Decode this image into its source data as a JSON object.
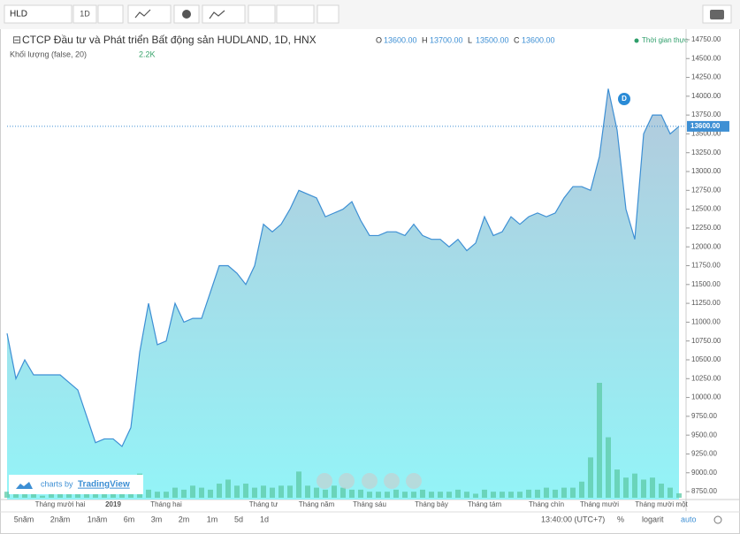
{
  "toolbar": {
    "symbol": "HLD",
    "interval": "1D"
  },
  "chart_data": {
    "type": "area",
    "title": "CTCP Đầu tư và Phát triển Bất động sản HUDLAND, 1D, HNX",
    "ohlc": [
      {
        "label": "O",
        "value": "13600.00"
      },
      {
        "label": "H",
        "value": "13700.00"
      },
      {
        "label": "L",
        "value": "13500.00"
      },
      {
        "label": "C",
        "value": "13600.00"
      }
    ],
    "realtime": "Thời gian thực",
    "volume_title": "Khối lượng (false, 20)",
    "volume_value": "2.2K",
    "marker": "D",
    "color": "#3d8fd4",
    "categories": [
      null,
      null,
      null,
      null,
      null,
      null,
      "Tháng mười hai",
      null,
      null,
      null,
      null,
      null,
      "2019",
      null,
      null,
      null,
      null,
      null,
      "Tháng hai",
      null,
      null,
      null,
      null,
      null,
      null,
      null,
      null,
      null,
      null,
      "Tháng tư",
      null,
      null,
      null,
      null,
      null,
      "Tháng năm",
      null,
      null,
      null,
      null,
      null,
      "Tháng sáu",
      null,
      null,
      null,
      null,
      null,
      null,
      "Tháng bảy",
      null,
      null,
      null,
      null,
      null,
      "Tháng tám",
      null,
      null,
      null,
      null,
      null,
      null,
      "Tháng chín",
      null,
      null,
      null,
      null,
      null,
      "Tháng mười",
      null,
      null,
      null,
      null,
      null,
      null,
      "Tháng mười một",
      null,
      null
    ],
    "values": [
      10850,
      10250,
      10500,
      10300,
      10300,
      10300,
      10300,
      10200,
      10100,
      9750,
      9400,
      9450,
      9450,
      9350,
      9600,
      10600,
      11250,
      10700,
      10750,
      11250,
      11000,
      11050,
      11050,
      11400,
      11750,
      11750,
      11650,
      11500,
      11750,
      12300,
      12200,
      12300,
      12500,
      12750,
      12700,
      12650,
      12400,
      12450,
      12500,
      12600,
      12350,
      12150,
      12150,
      12200,
      12200,
      12150,
      12300,
      12150,
      12100,
      12100,
      12000,
      12100,
      11950,
      12050,
      12400,
      12150,
      12200,
      12400,
      12300,
      12400,
      12450,
      12400,
      12450,
      12650,
      12800,
      12800,
      12750,
      13200,
      14100,
      13550,
      12500,
      12100,
      13500,
      13750,
      13750,
      13500,
      13600
    ],
    "volume": [
      3,
      2,
      2,
      2,
      1,
      2,
      2,
      2,
      3,
      2,
      4,
      5,
      3,
      3,
      5,
      12,
      4,
      3,
      3,
      5,
      4,
      6,
      5,
      4,
      7,
      9,
      6,
      7,
      5,
      6,
      5,
      6,
      6,
      13,
      6,
      5,
      4,
      6,
      5,
      4,
      4,
      3,
      3,
      3,
      4,
      3,
      3,
      4,
      3,
      3,
      3,
      4,
      3,
      2,
      4,
      3,
      3,
      3,
      3,
      4,
      4,
      5,
      4,
      5,
      5,
      8,
      20,
      57,
      30,
      14,
      10,
      12,
      9,
      10,
      7,
      5,
      2.2
    ],
    "ylim": [
      8645,
      14855
    ],
    "yticks": [
      {
        "value": 8750,
        "label": "8750.00"
      },
      {
        "value": 9000,
        "label": "9000.00"
      },
      {
        "value": 9250,
        "label": "9250.00"
      },
      {
        "value": 9500,
        "label": "9500.00"
      },
      {
        "value": 9750,
        "label": "9750.00"
      },
      {
        "value": 10000,
        "label": "10000.00"
      },
      {
        "value": 10250,
        "label": "10250.00"
      },
      {
        "value": 10500,
        "label": "10500.00"
      },
      {
        "value": 10750,
        "label": "10750.00"
      },
      {
        "value": 11000,
        "label": "11000.00"
      },
      {
        "value": 11250,
        "label": "11250.00"
      },
      {
        "value": 11500,
        "label": "11500.00"
      },
      {
        "value": 11750,
        "label": "11750.00"
      },
      {
        "value": 12000,
        "label": "12000.00"
      },
      {
        "value": 12250,
        "label": "12250.00"
      },
      {
        "value": 12500,
        "label": "12500.00"
      },
      {
        "value": 12750,
        "label": "12750.00"
      },
      {
        "value": 13000,
        "label": "13000.00"
      },
      {
        "value": 13250,
        "label": "13250.00"
      },
      {
        "value": 13500,
        "label": "13500.00"
      },
      {
        "value": 13750,
        "label": "13750.00"
      },
      {
        "value": 14000,
        "label": "14000.00"
      },
      {
        "value": 14250,
        "label": "14250.00"
      },
      {
        "value": 14500,
        "label": "14500.00"
      },
      {
        "value": 14750,
        "label": "14750.00"
      }
    ],
    "last_price": {
      "value": 13600,
      "label": "13600.00"
    },
    "branding": {
      "prefix": "charts by",
      "name": "TradingView"
    }
  },
  "bottom_bar": {
    "ranges": [
      "5năm",
      "2năm",
      "1năm",
      "6m",
      "3m",
      "2m",
      "1m",
      "5d",
      "1d"
    ],
    "time": "13:40:00 (UTC+7)",
    "percent": "%",
    "log": "logarit",
    "auto": "auto"
  }
}
